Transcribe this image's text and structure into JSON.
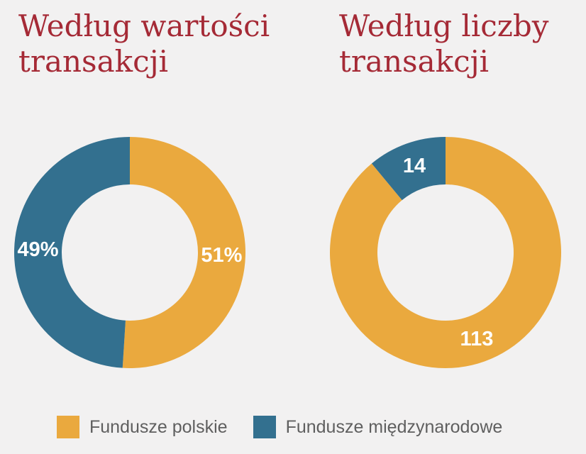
{
  "chart_data": [
    {
      "type": "pie",
      "title": "Według wartości transakcji",
      "slices": [
        {
          "name": "Fundusze polskie",
          "value": 51,
          "label": "51%",
          "color": "#eaa93e"
        },
        {
          "name": "Fundusze międzynarodowe",
          "value": 49,
          "label": "49%",
          "color": "#33708f"
        }
      ]
    },
    {
      "type": "pie",
      "title": "Według liczby transakcji",
      "slices": [
        {
          "name": "Fundusze polskie",
          "value": 113,
          "label": "113",
          "color": "#eaa93e"
        },
        {
          "name": "Fundusze międzynarodowe",
          "value": 14,
          "label": "14",
          "color": "#33708f"
        }
      ]
    }
  ],
  "legend": [
    {
      "label": "Fundusze polskie",
      "color": "#eaa93e"
    },
    {
      "label": "Fundusze międzynarodowe",
      "color": "#33708f"
    }
  ]
}
